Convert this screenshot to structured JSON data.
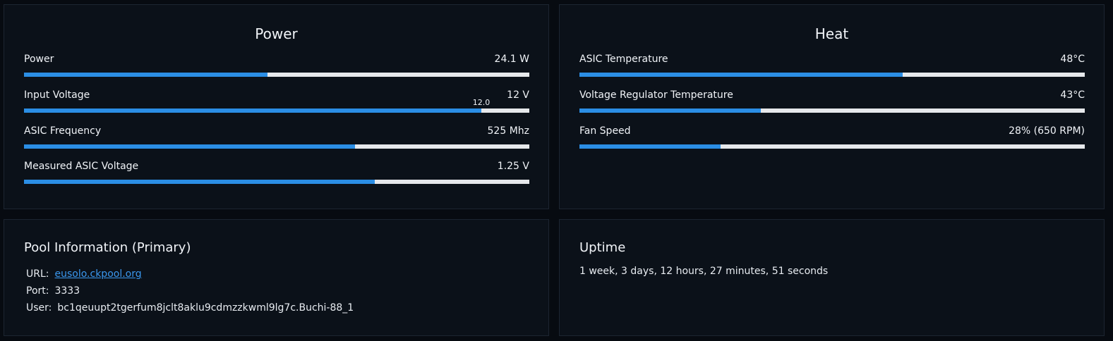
{
  "power": {
    "title": "Power",
    "metrics": [
      {
        "label": "Power",
        "value": "24.1 W",
        "fill_fraction": 0.482
      },
      {
        "label": "Input Voltage",
        "value": "12 V",
        "fill_fraction": 0.905,
        "marker": "12.0"
      },
      {
        "label": "ASIC Frequency",
        "value": "525 Mhz",
        "fill_fraction": 0.655
      },
      {
        "label": "Measured ASIC Voltage",
        "value": "1.25 V",
        "fill_fraction": 0.694
      }
    ]
  },
  "heat": {
    "title": "Heat",
    "metrics": [
      {
        "label": "ASIC Temperature",
        "value": "48°C",
        "fill_fraction": 0.639
      },
      {
        "label": "Voltage Regulator Temperature",
        "value": "43°C",
        "fill_fraction": 0.359
      },
      {
        "label": "Fan Speed",
        "value": "28% (650 RPM)",
        "fill_fraction": 0.28
      }
    ]
  },
  "pool": {
    "title": "Pool Information (Primary)",
    "url_label": "URL:",
    "url": "eusolo.ckpool.org",
    "port_label": "Port:",
    "port": "3333",
    "user_label": "User:",
    "user": "bc1qeuupt2tgerfum8jclt8aklu9cdmzzkwml9lg7c.Buchi-88_1"
  },
  "uptime": {
    "title": "Uptime",
    "value": "1 week, 3 days, 12 hours, 27 minutes, 51 seconds"
  },
  "colors": {
    "accent": "#2b8ee5",
    "track": "#e6e8eb",
    "card_bg": "#0b1119",
    "page_bg": "#070b11",
    "link": "#3a97ee"
  }
}
